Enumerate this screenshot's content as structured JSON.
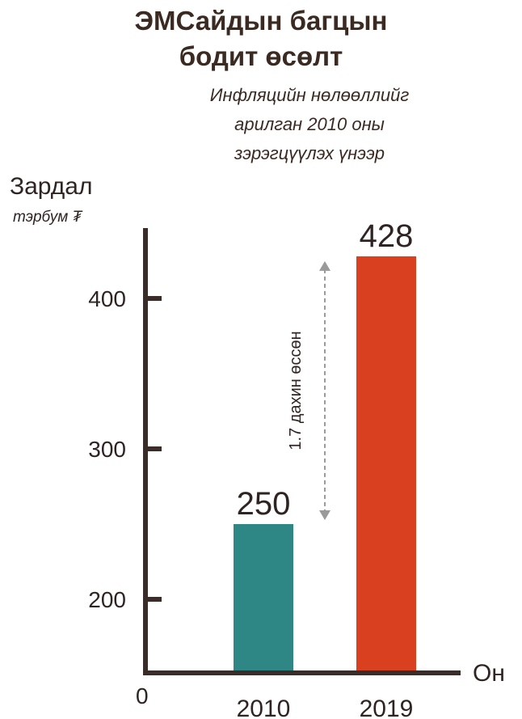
{
  "title_line1": "ЭМСайдын багцын",
  "title_line2": "бодит өсөлт",
  "subtitle_line1": "Инфляцийн нөлөөллийг",
  "subtitle_line2": "арилган 2010 оны",
  "subtitle_line3": "зэрэгцүүлэх үнээр",
  "chart_data": {
    "type": "bar",
    "title": "ЭМСайдын багцын бодит өсөлт",
    "ylabel": "Зардал",
    "yunit": "тэрбум ₮",
    "xlabel": "Он",
    "categories": [
      "2010",
      "2019"
    ],
    "values": [
      250,
      428
    ],
    "bar_colors": [
      "#2e8784",
      "#d9401f"
    ],
    "yticks": [
      200,
      300,
      400
    ],
    "origin_label": "0",
    "ylim": [
      150,
      460
    ],
    "grid": false,
    "annotation": "1.7 дахин өссөн",
    "axis_color": "#3a2c28"
  }
}
